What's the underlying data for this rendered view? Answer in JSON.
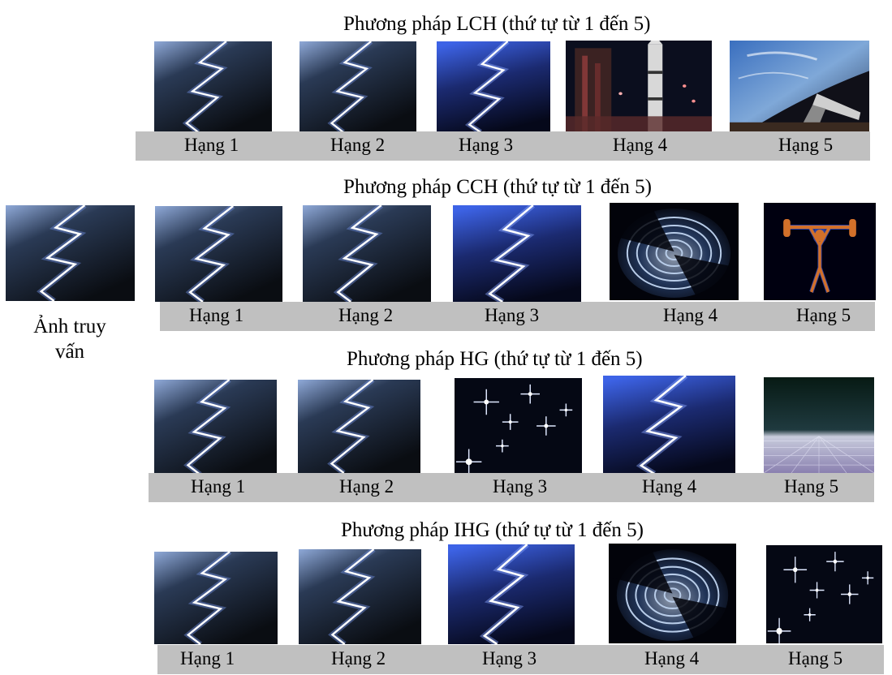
{
  "query": {
    "caption_line1": "Ảnh truy",
    "caption_line2": "vấn",
    "image": "lightning"
  },
  "sections": [
    {
      "title": "Phương pháp LCH (thứ tự từ 1 đến 5)",
      "ranks": [
        "Hạng 1",
        "Hạng 2",
        "Hạng 3",
        "Hạng 4",
        "Hạng 5"
      ],
      "images": [
        "lightning",
        "lightning",
        "lightning-blue",
        "rocket",
        "earth-shuttle"
      ]
    },
    {
      "title": "Phương pháp CCH (thứ tự từ 1 đến 5)",
      "ranks": [
        "Hạng 1",
        "Hạng 2",
        "Hạng 3",
        "Hạng 4",
        "Hạng 5"
      ],
      "images": [
        "lightning",
        "lightning",
        "lightning-blue",
        "spiral",
        "weightlifter"
      ]
    },
    {
      "title": "Phương pháp HG (thứ tự từ 1 đến 5)",
      "ranks": [
        "Hạng 1",
        "Hạng 2",
        "Hạng 3",
        "Hạng 4",
        "Hạng 5"
      ],
      "images": [
        "lightning",
        "lightning",
        "sparkles",
        "lightning-blue",
        "grid-horizon"
      ]
    },
    {
      "title": "Phương pháp IHG (thứ tự từ 1 đến 5)",
      "ranks": [
        "Hạng 1",
        "Hạng 2",
        "Hạng 3",
        "Hạng 4",
        "Hạng 5"
      ],
      "images": [
        "lightning",
        "lightning",
        "lightning-blue",
        "spiral",
        "sparkles"
      ]
    }
  ]
}
